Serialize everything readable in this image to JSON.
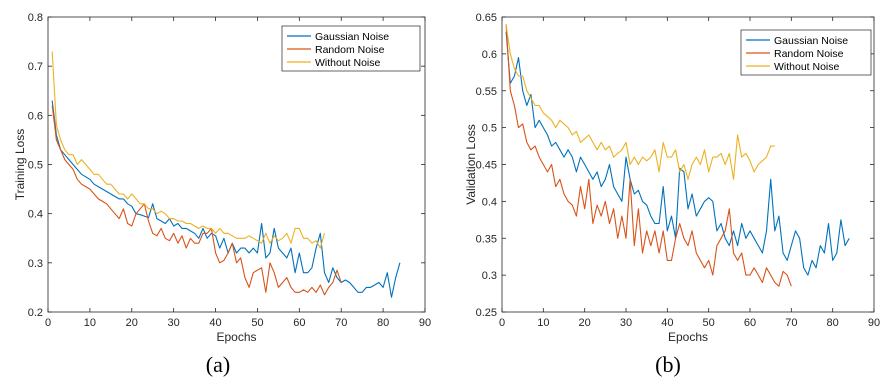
{
  "chart_data": [
    {
      "type": "line",
      "panel_label": "(a)",
      "xlabel": "Epochs",
      "ylabel": "Training Loss",
      "xlim": [
        0,
        90
      ],
      "ylim": [
        0.2,
        0.8
      ],
      "xticks": [
        0,
        10,
        20,
        30,
        40,
        50,
        60,
        70,
        80,
        90
      ],
      "yticks": [
        0.2,
        0.3,
        0.4,
        0.5,
        0.6,
        0.7,
        0.8
      ],
      "grid": false,
      "legend_position": "top-right",
      "series": [
        {
          "name": "Gaussian Noise",
          "color": "#0072BD",
          "x": [
            1,
            2,
            3,
            4,
            5,
            6,
            7,
            8,
            9,
            10,
            11,
            12,
            13,
            14,
            15,
            16,
            17,
            18,
            19,
            20,
            21,
            22,
            23,
            24,
            25,
            26,
            27,
            28,
            29,
            30,
            31,
            32,
            33,
            34,
            35,
            36,
            37,
            38,
            39,
            40,
            41,
            42,
            43,
            44,
            45,
            46,
            47,
            48,
            49,
            50,
            51,
            52,
            53,
            54,
            55,
            56,
            57,
            58,
            59,
            60,
            61,
            62,
            63,
            64,
            65,
            66,
            67,
            68,
            69,
            70,
            71,
            72,
            73,
            74,
            75,
            76,
            77,
            78,
            79,
            80,
            81,
            82,
            83,
            84
          ],
          "y": [
            0.63,
            0.56,
            0.53,
            0.52,
            0.51,
            0.5,
            0.49,
            0.48,
            0.475,
            0.47,
            0.46,
            0.455,
            0.45,
            0.445,
            0.44,
            0.435,
            0.43,
            0.43,
            0.42,
            0.415,
            0.4,
            0.398,
            0.395,
            0.392,
            0.42,
            0.39,
            0.385,
            0.38,
            0.39,
            0.375,
            0.38,
            0.37,
            0.37,
            0.365,
            0.36,
            0.35,
            0.37,
            0.35,
            0.36,
            0.355,
            0.33,
            0.35,
            0.32,
            0.34,
            0.32,
            0.33,
            0.33,
            0.32,
            0.33,
            0.32,
            0.38,
            0.31,
            0.32,
            0.37,
            0.33,
            0.32,
            0.31,
            0.33,
            0.28,
            0.32,
            0.28,
            0.28,
            0.29,
            0.33,
            0.36,
            0.28,
            0.26,
            0.29,
            0.27,
            0.26,
            0.265,
            0.26,
            0.25,
            0.24,
            0.24,
            0.25,
            0.25,
            0.255,
            0.26,
            0.25,
            0.28,
            0.23,
            0.27,
            0.3
          ]
        },
        {
          "name": "Random Noise",
          "color": "#D95319",
          "x": [
            1,
            2,
            3,
            4,
            5,
            6,
            7,
            8,
            9,
            10,
            11,
            12,
            13,
            14,
            15,
            16,
            17,
            18,
            19,
            20,
            21,
            22,
            23,
            24,
            25,
            26,
            27,
            28,
            29,
            30,
            31,
            32,
            33,
            34,
            35,
            36,
            37,
            38,
            39,
            40,
            41,
            42,
            43,
            44,
            45,
            46,
            47,
            48,
            49,
            50,
            51,
            52,
            53,
            54,
            55,
            56,
            57,
            58,
            59,
            60,
            61,
            62,
            63,
            64,
            65,
            66,
            67,
            68,
            69,
            70
          ],
          "y": [
            0.62,
            0.55,
            0.53,
            0.51,
            0.5,
            0.49,
            0.47,
            0.46,
            0.455,
            0.45,
            0.44,
            0.43,
            0.425,
            0.42,
            0.41,
            0.4,
            0.39,
            0.41,
            0.38,
            0.375,
            0.4,
            0.41,
            0.42,
            0.385,
            0.36,
            0.355,
            0.37,
            0.35,
            0.345,
            0.36,
            0.34,
            0.355,
            0.33,
            0.35,
            0.34,
            0.34,
            0.36,
            0.36,
            0.37,
            0.32,
            0.3,
            0.305,
            0.32,
            0.34,
            0.3,
            0.31,
            0.27,
            0.25,
            0.28,
            0.285,
            0.29,
            0.24,
            0.3,
            0.28,
            0.25,
            0.26,
            0.27,
            0.25,
            0.24,
            0.24,
            0.245,
            0.24,
            0.25,
            0.24,
            0.255,
            0.235,
            0.25,
            0.26,
            0.285,
            0.26
          ]
        },
        {
          "name": "Without Noise",
          "color": "#EDB120",
          "x": [
            1,
            2,
            3,
            4,
            5,
            6,
            7,
            8,
            9,
            10,
            11,
            12,
            13,
            14,
            15,
            16,
            17,
            18,
            19,
            20,
            21,
            22,
            23,
            24,
            25,
            26,
            27,
            28,
            29,
            30,
            31,
            32,
            33,
            34,
            35,
            36,
            37,
            38,
            39,
            40,
            41,
            42,
            43,
            44,
            45,
            46,
            47,
            48,
            49,
            50,
            51,
            52,
            53,
            54,
            55,
            56,
            57,
            58,
            59,
            60,
            61,
            62,
            63,
            64,
            65,
            66
          ],
          "y": [
            0.73,
            0.58,
            0.55,
            0.53,
            0.52,
            0.52,
            0.5,
            0.51,
            0.5,
            0.49,
            0.48,
            0.48,
            0.47,
            0.46,
            0.46,
            0.45,
            0.44,
            0.44,
            0.43,
            0.44,
            0.43,
            0.42,
            0.42,
            0.41,
            0.41,
            0.4,
            0.405,
            0.4,
            0.39,
            0.39,
            0.385,
            0.385,
            0.38,
            0.38,
            0.375,
            0.37,
            0.375,
            0.37,
            0.37,
            0.36,
            0.37,
            0.36,
            0.36,
            0.355,
            0.35,
            0.35,
            0.35,
            0.355,
            0.35,
            0.345,
            0.34,
            0.36,
            0.34,
            0.355,
            0.345,
            0.35,
            0.36,
            0.34,
            0.37,
            0.37,
            0.35,
            0.35,
            0.34,
            0.345,
            0.33,
            0.36
          ]
        }
      ]
    },
    {
      "type": "line",
      "panel_label": "(b)",
      "xlabel": "Epochs",
      "ylabel": "Validation Loss",
      "xlim": [
        0,
        90
      ],
      "ylim": [
        0.25,
        0.65
      ],
      "xticks": [
        0,
        10,
        20,
        30,
        40,
        50,
        60,
        70,
        80,
        90
      ],
      "yticks": [
        0.25,
        0.3,
        0.35,
        0.4,
        0.45,
        0.5,
        0.55,
        0.6,
        0.65
      ],
      "grid": false,
      "legend_position": "top-right",
      "series": [
        {
          "name": "Gaussian Noise",
          "color": "#0072BD",
          "x": [
            1,
            2,
            3,
            4,
            5,
            6,
            7,
            8,
            9,
            10,
            11,
            12,
            13,
            14,
            15,
            16,
            17,
            18,
            19,
            20,
            21,
            22,
            23,
            24,
            25,
            26,
            27,
            28,
            29,
            30,
            31,
            32,
            33,
            34,
            35,
            36,
            37,
            38,
            39,
            40,
            41,
            42,
            43,
            44,
            45,
            46,
            47,
            48,
            49,
            50,
            51,
            52,
            53,
            54,
            55,
            56,
            57,
            58,
            59,
            60,
            61,
            62,
            63,
            64,
            65,
            66,
            67,
            68,
            69,
            70,
            71,
            72,
            73,
            74,
            75,
            76,
            77,
            78,
            79,
            80,
            81,
            82,
            83,
            84
          ],
          "y": [
            0.63,
            0.56,
            0.57,
            0.595,
            0.55,
            0.53,
            0.545,
            0.5,
            0.51,
            0.5,
            0.49,
            0.475,
            0.48,
            0.47,
            0.46,
            0.47,
            0.46,
            0.44,
            0.46,
            0.45,
            0.44,
            0.43,
            0.44,
            0.42,
            0.43,
            0.45,
            0.42,
            0.41,
            0.4,
            0.46,
            0.43,
            0.41,
            0.415,
            0.4,
            0.395,
            0.38,
            0.37,
            0.37,
            0.42,
            0.36,
            0.38,
            0.35,
            0.445,
            0.44,
            0.39,
            0.41,
            0.38,
            0.39,
            0.4,
            0.405,
            0.4,
            0.36,
            0.37,
            0.35,
            0.34,
            0.36,
            0.34,
            0.37,
            0.35,
            0.36,
            0.35,
            0.34,
            0.33,
            0.36,
            0.43,
            0.36,
            0.38,
            0.33,
            0.32,
            0.34,
            0.36,
            0.35,
            0.31,
            0.3,
            0.32,
            0.31,
            0.34,
            0.33,
            0.37,
            0.32,
            0.33,
            0.375,
            0.34,
            0.35
          ]
        },
        {
          "name": "Random Noise",
          "color": "#D95319",
          "x": [
            1,
            2,
            3,
            4,
            5,
            6,
            7,
            8,
            9,
            10,
            11,
            12,
            13,
            14,
            15,
            16,
            17,
            18,
            19,
            20,
            21,
            22,
            23,
            24,
            25,
            26,
            27,
            28,
            29,
            30,
            31,
            32,
            33,
            34,
            35,
            36,
            37,
            38,
            39,
            40,
            41,
            42,
            43,
            44,
            45,
            46,
            47,
            48,
            49,
            50,
            51,
            52,
            53,
            54,
            55,
            56,
            57,
            58,
            59,
            60,
            61,
            62,
            63,
            64,
            65,
            66,
            67,
            68,
            69,
            70
          ],
          "y": [
            0.64,
            0.55,
            0.53,
            0.5,
            0.505,
            0.48,
            0.47,
            0.475,
            0.46,
            0.45,
            0.44,
            0.45,
            0.42,
            0.43,
            0.41,
            0.4,
            0.395,
            0.38,
            0.42,
            0.39,
            0.43,
            0.37,
            0.395,
            0.38,
            0.4,
            0.37,
            0.39,
            0.35,
            0.38,
            0.35,
            0.43,
            0.34,
            0.39,
            0.33,
            0.36,
            0.34,
            0.36,
            0.33,
            0.36,
            0.32,
            0.32,
            0.35,
            0.37,
            0.35,
            0.34,
            0.36,
            0.33,
            0.32,
            0.31,
            0.32,
            0.3,
            0.34,
            0.35,
            0.36,
            0.39,
            0.33,
            0.32,
            0.33,
            0.3,
            0.3,
            0.31,
            0.3,
            0.29,
            0.31,
            0.3,
            0.29,
            0.285,
            0.305,
            0.3,
            0.285
          ]
        },
        {
          "name": "Without Noise",
          "color": "#EDB120",
          "x": [
            1,
            2,
            3,
            4,
            5,
            6,
            7,
            8,
            9,
            10,
            11,
            12,
            13,
            14,
            15,
            16,
            17,
            18,
            19,
            20,
            21,
            22,
            23,
            24,
            25,
            26,
            27,
            28,
            29,
            30,
            31,
            32,
            33,
            34,
            35,
            36,
            37,
            38,
            39,
            40,
            41,
            42,
            43,
            44,
            45,
            46,
            47,
            48,
            49,
            50,
            51,
            52,
            53,
            54,
            55,
            56,
            57,
            58,
            59,
            60,
            61,
            62,
            63,
            64,
            65,
            66
          ],
          "y": [
            0.64,
            0.6,
            0.58,
            0.57,
            0.57,
            0.55,
            0.54,
            0.53,
            0.53,
            0.52,
            0.515,
            0.51,
            0.5,
            0.51,
            0.505,
            0.5,
            0.49,
            0.495,
            0.48,
            0.485,
            0.49,
            0.48,
            0.47,
            0.48,
            0.47,
            0.475,
            0.46,
            0.465,
            0.47,
            0.48,
            0.45,
            0.46,
            0.45,
            0.46,
            0.455,
            0.46,
            0.47,
            0.44,
            0.48,
            0.46,
            0.46,
            0.47,
            0.44,
            0.45,
            0.43,
            0.45,
            0.46,
            0.45,
            0.47,
            0.44,
            0.46,
            0.46,
            0.465,
            0.45,
            0.465,
            0.43,
            0.49,
            0.46,
            0.465,
            0.455,
            0.44,
            0.45,
            0.455,
            0.46,
            0.475,
            0.475
          ]
        }
      ]
    }
  ]
}
